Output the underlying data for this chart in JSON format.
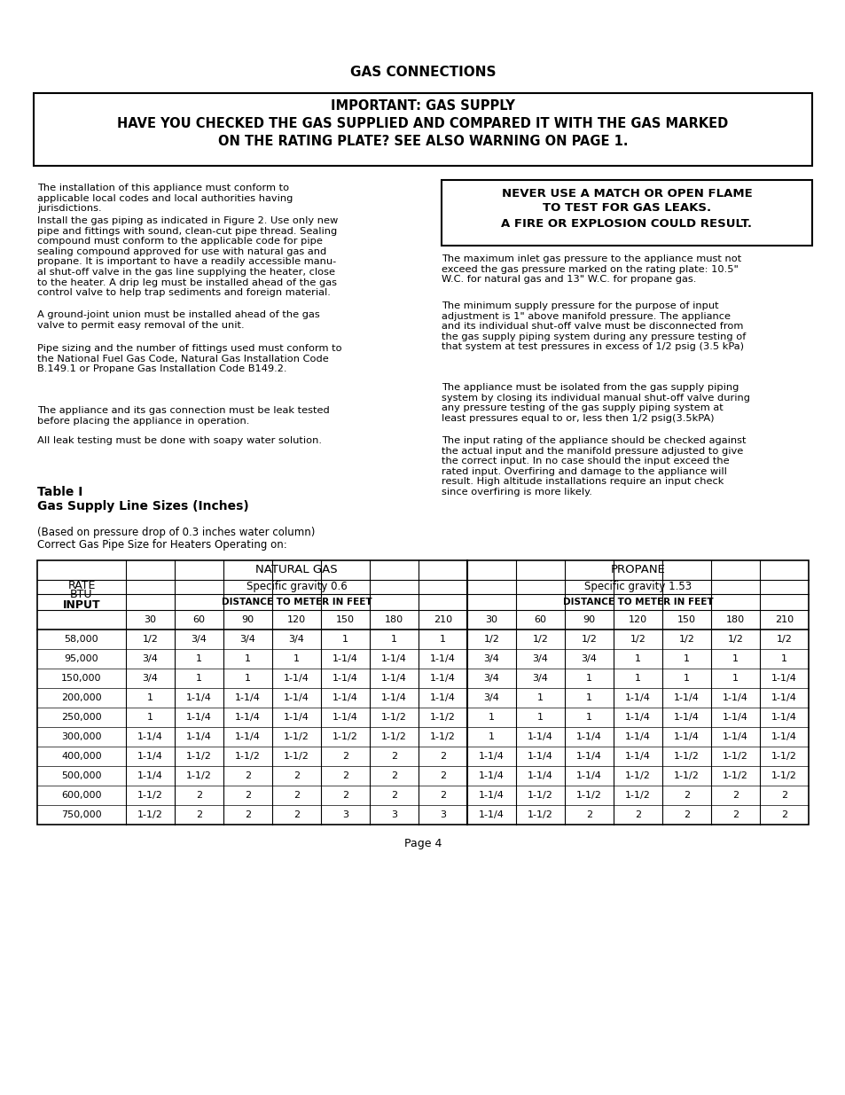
{
  "page_title": "GAS CONNECTIONS",
  "important_box_lines": [
    "IMPORTANT: GAS SUPPLY",
    "HAVE YOU CHECKED THE GAS SUPPLIED AND COMPARED IT WITH THE GAS MARKED",
    "ON THE RATING PLATE? SEE ALSO WARNING ON PAGE 1."
  ],
  "left_col_paragraphs": [
    "The installation of this appliance must conform to\napplicable local codes and local authorities having\njurisdictions.",
    "Install the gas piping as indicated in Figure 2. Use only new\npipe and fittings with sound, clean-cut pipe thread. Sealing\ncompound must conform to the applicable code for pipe\nsealing compound approved for use with natural gas and\npropane. It is important to have a readily accessible manu-\nal shut-off valve in the gas line supplying the heater, close\nto the heater. A drip leg must be installed ahead of the gas\ncontrol valve to help trap sediments and foreign material.",
    "A ground-joint union must be installed ahead of the gas\nvalve to permit easy removal of the unit.",
    "Pipe sizing and the number of fittings used must conform to\nthe National Fuel Gas Code, Natural Gas Installation Code\nB.149.1 or Propane Gas Installation Code B149.2.",
    "The appliance and its gas connection must be leak tested\nbefore placing the appliance in operation.",
    "All leak testing must be done with soapy water solution."
  ],
  "warning_box_lines": [
    "NEVER USE A MATCH OR OPEN FLAME",
    "TO TEST FOR GAS LEAKS.",
    "A FIRE OR EXPLOSION COULD RESULT."
  ],
  "right_col_paragraphs": [
    "The maximum inlet gas pressure to the appliance must not\nexceed the gas pressure marked on the rating plate: 10.5\"\nW.C. for natural gas and 13\" W.C. for propane gas.",
    "The minimum supply pressure for the purpose of input\nadjustment is 1\" above manifold pressure. The appliance\nand its individual shut-off valve must be disconnected from\nthe gas supply piping system during any pressure testing of\nthat system at test pressures in excess of 1/2 psig (3.5 kPa)",
    "The appliance must be isolated from the gas supply piping\nsystem by closing its individual manual shut-off valve during\nany pressure testing of the gas supply piping system at\nleast pressures equal to or, less then 1/2 psig(3.5kPA)",
    "The input rating of the appliance should be checked against\nthe actual input and the manifold pressure adjusted to give\nthe correct input. In no case should the input exceed the\nrated input. Overfiring and damage to the appliance will\nresult. High altitude installations require an input check\nsince overfiring is more likely."
  ],
  "table_subtitle1": "(Based on pressure drop of 0.3 inches water column)",
  "table_subtitle2": "Correct Gas Pipe Size for Heaters Operating on:",
  "ng_header1": "NATURAL GAS",
  "ng_header2": "Specific gravity 0.6",
  "ng_header3": "DISTANCE TO METER IN FEET",
  "prop_header1": "PROPANE",
  "prop_header2": "Specific gravity 1.53",
  "prop_header3": "DISTANCE TO METER IN FEET",
  "distance_cols": [
    30,
    60,
    90,
    120,
    150,
    180,
    210
  ],
  "rates": [
    "58,000",
    "95,000",
    "150,000",
    "200,000",
    "250,000",
    "300,000",
    "400,000",
    "500,000",
    "600,000",
    "750,000"
  ],
  "ng_data": [
    [
      "1/2",
      "3/4",
      "3/4",
      "3/4",
      "1",
      "1",
      "1"
    ],
    [
      "3/4",
      "1",
      "1",
      "1",
      "1-1/4",
      "1-1/4",
      "1-1/4"
    ],
    [
      "3/4",
      "1",
      "1",
      "1-1/4",
      "1-1/4",
      "1-1/4",
      "1-1/4"
    ],
    [
      "1",
      "1-1/4",
      "1-1/4",
      "1-1/4",
      "1-1/4",
      "1-1/4",
      "1-1/4"
    ],
    [
      "1",
      "1-1/4",
      "1-1/4",
      "1-1/4",
      "1-1/4",
      "1-1/2",
      "1-1/2"
    ],
    [
      "1-1/4",
      "1-1/4",
      "1-1/4",
      "1-1/2",
      "1-1/2",
      "1-1/2",
      "1-1/2"
    ],
    [
      "1-1/4",
      "1-1/2",
      "1-1/2",
      "1-1/2",
      "2",
      "2",
      "2"
    ],
    [
      "1-1/4",
      "1-1/2",
      "2",
      "2",
      "2",
      "2",
      "2"
    ],
    [
      "1-1/2",
      "2",
      "2",
      "2",
      "2",
      "2",
      "2"
    ],
    [
      "1-1/2",
      "2",
      "2",
      "2",
      "3",
      "3",
      "3"
    ]
  ],
  "prop_data": [
    [
      "1/2",
      "1/2",
      "1/2",
      "1/2",
      "1/2",
      "1/2",
      "1/2"
    ],
    [
      "3/4",
      "3/4",
      "3/4",
      "1",
      "1",
      "1",
      "1"
    ],
    [
      "3/4",
      "3/4",
      "1",
      "1",
      "1",
      "1",
      "1-1/4"
    ],
    [
      "3/4",
      "1",
      "1",
      "1-1/4",
      "1-1/4",
      "1-1/4",
      "1-1/4"
    ],
    [
      "1",
      "1",
      "1",
      "1-1/4",
      "1-1/4",
      "1-1/4",
      "1-1/4"
    ],
    [
      "1",
      "1-1/4",
      "1-1/4",
      "1-1/4",
      "1-1/4",
      "1-1/4",
      "1-1/4"
    ],
    [
      "1-1/4",
      "1-1/4",
      "1-1/4",
      "1-1/4",
      "1-1/2",
      "1-1/2",
      "1-1/2"
    ],
    [
      "1-1/4",
      "1-1/4",
      "1-1/4",
      "1-1/2",
      "1-1/2",
      "1-1/2",
      "1-1/2"
    ],
    [
      "1-1/4",
      "1-1/2",
      "1-1/2",
      "1-1/2",
      "2",
      "2",
      "2"
    ],
    [
      "1-1/4",
      "1-1/2",
      "2",
      "2",
      "2",
      "2",
      "2"
    ]
  ],
  "page_number": "Page 4",
  "background_color": "#ffffff"
}
